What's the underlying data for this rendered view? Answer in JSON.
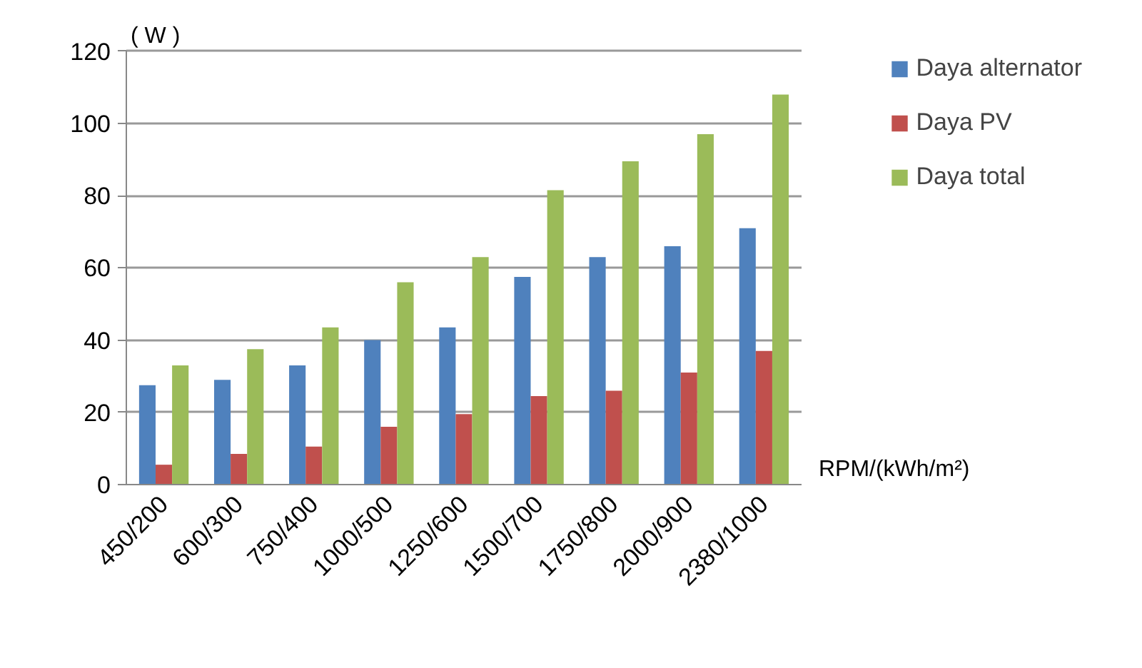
{
  "chart_data": {
    "type": "bar",
    "ylabel": "( W )",
    "xlabel": "RPM/(kWh/m²)",
    "categories": [
      "450/200",
      "600/300",
      "750/400",
      "1000/500",
      "1250/600",
      "1500/700",
      "1750/800",
      "2000/900",
      "2380/1000"
    ],
    "series": [
      {
        "name": "Daya alternator",
        "color": "#4f81bd",
        "values": [
          27.5,
          29,
          33,
          40,
          43.5,
          57.5,
          63,
          66,
          71
        ]
      },
      {
        "name": "Daya PV",
        "color": "#c0504d",
        "values": [
          5.5,
          8.5,
          10.5,
          16,
          19.5,
          24.5,
          26,
          31,
          37
        ]
      },
      {
        "name": "Daya total",
        "color": "#9bbb59",
        "values": [
          33,
          37.5,
          43.5,
          56,
          63,
          81.5,
          89.5,
          97,
          108
        ]
      }
    ],
    "ylim": [
      0,
      120
    ],
    "yticks": [
      0,
      20,
      40,
      60,
      80,
      100,
      120
    ],
    "grid": "y",
    "legend": "right"
  }
}
